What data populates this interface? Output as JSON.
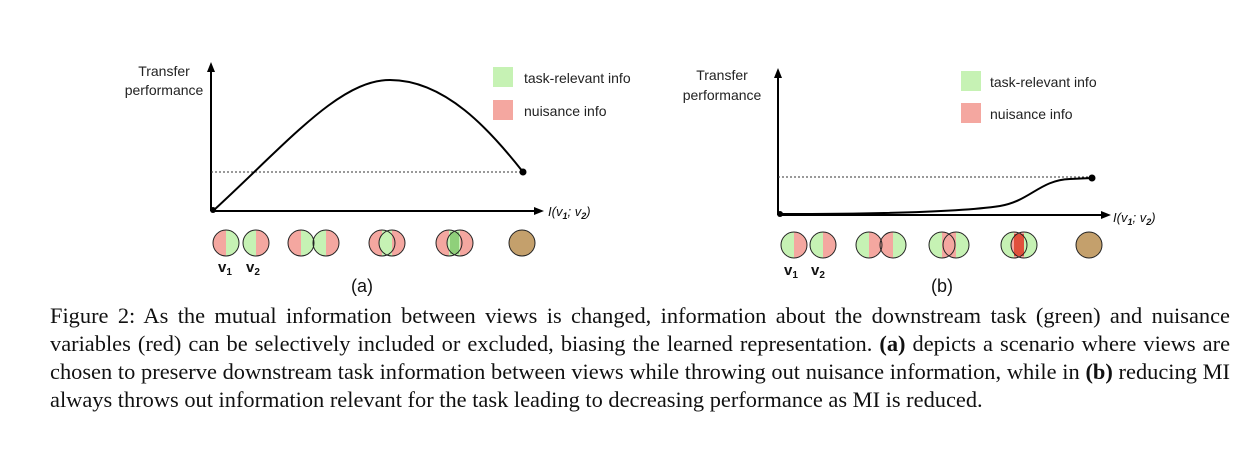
{
  "panel_a": {
    "ylabel_line1": "Transfer",
    "ylabel_line2": "performance",
    "xlabel": "I(v",
    "xlabel_sub1": "1",
    "xlabel_mid": "; v",
    "xlabel_sub2": "2",
    "xlabel_end": ")",
    "legend_green": "task-relevant info",
    "legend_red": "nuisance info",
    "view1_label": "v",
    "view1_sub": "1",
    "view2_label": "v",
    "view2_sub": "2",
    "panel_label": "(a)"
  },
  "panel_b": {
    "ylabel_line1": "Transfer",
    "ylabel_line2": "performance",
    "xlabel": "I(v",
    "xlabel_sub1": "1",
    "xlabel_mid": "; v",
    "xlabel_sub2": "2",
    "xlabel_end": ")",
    "legend_green": "task-relevant info",
    "legend_red": "nuisance info",
    "view1_label": "v",
    "view1_sub": "1",
    "view2_label": "v",
    "view2_sub": "2",
    "panel_label": "(b)"
  },
  "colors": {
    "green": "#c6f2b4",
    "red": "#f4a7a0",
    "overlap": "#c4a06c",
    "axis": "#000000"
  },
  "caption": {
    "prefix": "Figure 2:",
    "text1": " As the mutual information between views is changed, information about the downstream task (green) and nuisance variables (red) can be selectively included or excluded, biasing the learned representation. ",
    "bold_a": "(a)",
    "text2": " depicts a scenario where views are chosen to preserve downstream task information between views while throwing out nuisance information, while in ",
    "bold_b": "(b)",
    "text3": " reducing MI always throws out information relevant for the task leading to decreasing performance as MI is reduced."
  }
}
